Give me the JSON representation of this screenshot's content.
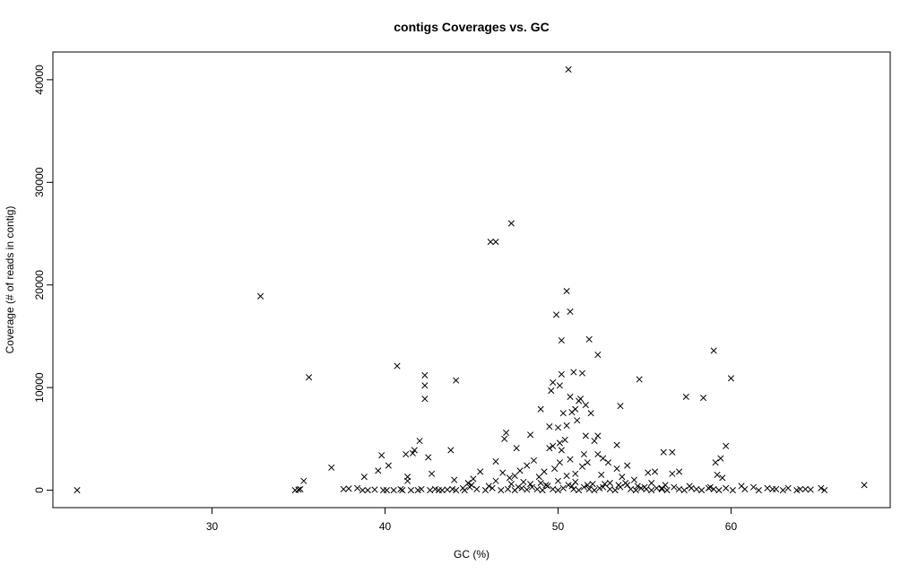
{
  "chart_data": {
    "type": "scatter",
    "title": "contigs Coverages vs. GC",
    "xlabel": "GC (%)",
    "ylabel": "Coverage (# of reads in contig)",
    "xlim": [
      20.8,
      69.2
    ],
    "ylim": [
      -1700,
      42700
    ],
    "xticks": [
      30,
      40,
      50,
      60
    ],
    "yticks": [
      0,
      10000,
      20000,
      30000,
      40000
    ],
    "marker": "x",
    "grid": false,
    "points": [
      [
        22.2,
        0
      ],
      [
        32.8,
        18900
      ],
      [
        35.6,
        11000
      ],
      [
        40.7,
        12100
      ],
      [
        42.3,
        11200
      ],
      [
        42.3,
        10200
      ],
      [
        42.3,
        8900
      ],
      [
        44.1,
        10700
      ],
      [
        46.1,
        24200
      ],
      [
        46.4,
        24200
      ],
      [
        47.3,
        26000
      ],
      [
        50.6,
        41000
      ],
      [
        50.5,
        19400
      ],
      [
        50.7,
        17400
      ],
      [
        49.9,
        17100
      ],
      [
        50.2,
        14600
      ],
      [
        51.8,
        14700
      ],
      [
        52.3,
        13200
      ],
      [
        59.0,
        13600
      ],
      [
        60.0,
        10900
      ],
      [
        54.7,
        10800
      ],
      [
        57.4,
        9100
      ],
      [
        58.4,
        9000
      ],
      [
        53.6,
        8200
      ],
      [
        49.7,
        10500
      ],
      [
        50.2,
        11300
      ],
      [
        50.9,
        11500
      ],
      [
        51.4,
        11400
      ],
      [
        49.6,
        9700
      ],
      [
        50.1,
        10200
      ],
      [
        50.7,
        9100
      ],
      [
        51.3,
        8900
      ],
      [
        51.0,
        7900
      ],
      [
        51.9,
        7500
      ],
      [
        50.3,
        7500
      ],
      [
        49.0,
        7900
      ],
      [
        51.2,
        8700
      ],
      [
        51.6,
        8300
      ],
      [
        50.8,
        7600
      ],
      [
        48.4,
        5400
      ],
      [
        51.1,
        6800
      ],
      [
        50.5,
        6300
      ],
      [
        50.0,
        6100
      ],
      [
        47.0,
        5600
      ],
      [
        46.9,
        5000
      ],
      [
        49.5,
        6200
      ],
      [
        51.6,
        5300
      ],
      [
        52.1,
        4800
      ],
      [
        52.3,
        5300
      ],
      [
        50.1,
        4600
      ],
      [
        50.4,
        4900
      ],
      [
        50.2,
        3900
      ],
      [
        49.7,
        4300
      ],
      [
        48.6,
        2900
      ],
      [
        49.5,
        4100
      ],
      [
        46.4,
        2800
      ],
      [
        47.6,
        4100
      ],
      [
        41.6,
        3600
      ],
      [
        41.7,
        3900
      ],
      [
        42.0,
        4800
      ],
      [
        40.2,
        2400
      ],
      [
        39.8,
        3400
      ],
      [
        41.2,
        3500
      ],
      [
        42.5,
        3200
      ],
      [
        44.0,
        1000
      ],
      [
        45.5,
        1800
      ],
      [
        43.8,
        3900
      ],
      [
        39.6,
        1900
      ],
      [
        38.8,
        1300
      ],
      [
        36.9,
        2200
      ],
      [
        35.3,
        900
      ],
      [
        42.7,
        1600
      ],
      [
        41.3,
        1300
      ],
      [
        41.3,
        900
      ],
      [
        53.4,
        4400
      ],
      [
        52.6,
        3100
      ],
      [
        51.5,
        3500
      ],
      [
        51.7,
        2700
      ],
      [
        51.4,
        2300
      ],
      [
        52.9,
        2700
      ],
      [
        56.1,
        3700
      ],
      [
        56.6,
        3700
      ],
      [
        59.7,
        4300
      ],
      [
        59.4,
        3100
      ],
      [
        59.1,
        2700
      ],
      [
        57.0,
        1800
      ],
      [
        56.6,
        1600
      ],
      [
        55.6,
        1800
      ],
      [
        55.2,
        1700
      ],
      [
        54.0,
        2400
      ],
      [
        53.4,
        2100
      ],
      [
        50.7,
        3000
      ],
      [
        52.3,
        3500
      ],
      [
        50.1,
        2700
      ],
      [
        49.8,
        2100
      ],
      [
        48.2,
        2400
      ],
      [
        47.8,
        1900
      ],
      [
        47.5,
        1400
      ],
      [
        47.2,
        1200
      ],
      [
        46.8,
        1700
      ],
      [
        46.4,
        900
      ],
      [
        45.1,
        1100
      ],
      [
        44.8,
        700
      ],
      [
        48.9,
        1300
      ],
      [
        49.2,
        1800
      ],
      [
        50.5,
        1400
      ],
      [
        51.0,
        1600
      ],
      [
        52.5,
        1500
      ],
      [
        53.7,
        1300
      ],
      [
        54.4,
        1000
      ],
      [
        55.4,
        700
      ],
      [
        56.2,
        500
      ],
      [
        57.6,
        400
      ],
      [
        58.8,
        300
      ],
      [
        59.2,
        1500
      ],
      [
        59.5,
        1200
      ],
      [
        60.6,
        400
      ],
      [
        61.3,
        300
      ],
      [
        62.1,
        200
      ],
      [
        62.6,
        100
      ],
      [
        63.3,
        200
      ],
      [
        64.0,
        100
      ],
      [
        64.6,
        50
      ],
      [
        65.2,
        200
      ],
      [
        65.4,
        0
      ],
      [
        67.7,
        500
      ],
      [
        34.8,
        0
      ],
      [
        35.1,
        100
      ],
      [
        37.6,
        100
      ],
      [
        37.9,
        150
      ],
      [
        38.4,
        200
      ],
      [
        39.0,
        0
      ],
      [
        39.4,
        50
      ],
      [
        39.9,
        0
      ],
      [
        40.5,
        0
      ],
      [
        40.9,
        100
      ],
      [
        41.5,
        0
      ],
      [
        41.9,
        0
      ],
      [
        42.6,
        0
      ],
      [
        43.1,
        0
      ],
      [
        43.6,
        50
      ],
      [
        44.1,
        0
      ],
      [
        44.6,
        0
      ],
      [
        44.9,
        300
      ],
      [
        45.3,
        100
      ],
      [
        45.8,
        0
      ],
      [
        46.2,
        200
      ],
      [
        46.7,
        0
      ],
      [
        47.1,
        100
      ],
      [
        47.5,
        0
      ],
      [
        47.9,
        200
      ],
      [
        48.2,
        50
      ],
      [
        48.5,
        300
      ],
      [
        48.8,
        100
      ],
      [
        49.1,
        0
      ],
      [
        49.4,
        400
      ],
      [
        49.7,
        100
      ],
      [
        50.0,
        0
      ],
      [
        50.3,
        200
      ],
      [
        50.6,
        500
      ],
      [
        50.9,
        100
      ],
      [
        51.2,
        0
      ],
      [
        51.5,
        300
      ],
      [
        51.8,
        100
      ],
      [
        52.1,
        0
      ],
      [
        52.4,
        200
      ],
      [
        52.7,
        600
      ],
      [
        53.0,
        100
      ],
      [
        53.3,
        0
      ],
      [
        53.6,
        300
      ],
      [
        53.9,
        700
      ],
      [
        54.2,
        100
      ],
      [
        54.5,
        0
      ],
      [
        54.8,
        200
      ],
      [
        55.1,
        100
      ],
      [
        55.4,
        0
      ],
      [
        55.7,
        200
      ],
      [
        56.0,
        100
      ],
      [
        56.3,
        0
      ],
      [
        56.7,
        300
      ],
      [
        57.0,
        100
      ],
      [
        57.3,
        0
      ],
      [
        57.7,
        200
      ],
      [
        58.0,
        100
      ],
      [
        58.3,
        0
      ],
      [
        58.7,
        200
      ],
      [
        59.0,
        100
      ],
      [
        59.3,
        0
      ],
      [
        59.7,
        200
      ],
      [
        60.1,
        0
      ],
      [
        60.8,
        100
      ],
      [
        61.6,
        0
      ],
      [
        62.4,
        100
      ],
      [
        63.0,
        0
      ],
      [
        63.8,
        0
      ],
      [
        64.3,
        100
      ],
      [
        45.0,
        500
      ],
      [
        46.0,
        400
      ],
      [
        47.3,
        600
      ],
      [
        48.0,
        800
      ],
      [
        49.0,
        700
      ],
      [
        50.0,
        900
      ],
      [
        51.0,
        800
      ],
      [
        52.0,
        600
      ],
      [
        53.0,
        700
      ],
      [
        54.0,
        500
      ],
      [
        55.0,
        300
      ],
      [
        56.0,
        200
      ],
      [
        47.7,
        300
      ],
      [
        48.4,
        600
      ],
      [
        49.3,
        500
      ],
      [
        50.8,
        400
      ],
      [
        51.7,
        500
      ],
      [
        52.6,
        300
      ],
      [
        53.5,
        500
      ],
      [
        54.6,
        400
      ],
      [
        44.5,
        200
      ],
      [
        43.3,
        0
      ],
      [
        42.1,
        100
      ],
      [
        40.1,
        0
      ],
      [
        38.7,
        0
      ],
      [
        35.0,
        50
      ],
      [
        41.0,
        0
      ],
      [
        42.9,
        100
      ],
      [
        43.9,
        100
      ]
    ]
  }
}
